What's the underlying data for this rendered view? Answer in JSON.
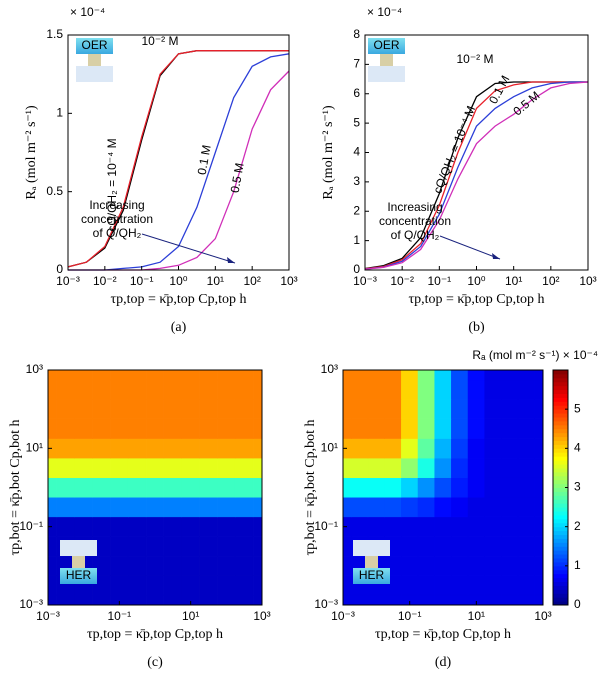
{
  "chart_data": [
    {
      "type": "line",
      "panel_label": "(a)",
      "inset_label": "OER",
      "xlabel": "τp,top = κ̄p,top Cp,top h",
      "ylabel": "Rₐ (mol m⁻² s⁻¹)",
      "y_multiplier": "× 10⁻⁴",
      "xscale": "log",
      "xlim": [
        0.001,
        1000
      ],
      "ylim": [
        0,
        1.5
      ],
      "xticks": [
        {
          "value": 0.001,
          "label": "10⁻³"
        },
        {
          "value": 0.01,
          "label": "10⁻²"
        },
        {
          "value": 0.1,
          "label": "10⁻¹"
        },
        {
          "value": 1,
          "label": "10⁰"
        },
        {
          "value": 10,
          "label": "10¹"
        },
        {
          "value": 100,
          "label": "10²"
        },
        {
          "value": 1000,
          "label": "10³"
        }
      ],
      "yticks": [
        0,
        0.5,
        1,
        1.5
      ],
      "x": [
        0.001,
        0.00316,
        0.01,
        0.0316,
        0.1,
        0.316,
        1,
        3.16,
        10,
        31.6,
        100,
        316,
        1000
      ],
      "series": [
        {
          "name": "10⁻² M",
          "color": "#000000",
          "values": [
            0.02,
            0.05,
            0.14,
            0.38,
            0.83,
            1.24,
            1.38,
            1.4,
            1.4,
            1.4,
            1.4,
            1.4,
            1.4
          ]
        },
        {
          "name": "cQ/QH₂ = 10⁻⁴ M",
          "color": "#e8202a",
          "values": [
            0.02,
            0.05,
            0.15,
            0.4,
            0.85,
            1.25,
            1.38,
            1.4,
            1.4,
            1.4,
            1.4,
            1.4,
            1.4
          ]
        },
        {
          "name": "0.1 M",
          "color": "#2c3fd8",
          "values": [
            0,
            0,
            0,
            0.01,
            0.02,
            0.05,
            0.15,
            0.4,
            0.75,
            1.1,
            1.3,
            1.36,
            1.38
          ]
        },
        {
          "name": "0.5 M",
          "color": "#d02fb8",
          "values": [
            0,
            0,
            0,
            0,
            0,
            0.01,
            0.03,
            0.08,
            0.2,
            0.5,
            0.9,
            1.15,
            1.27
          ]
        }
      ],
      "annotations": [
        "Increasing",
        "concentration",
        "of Q/QH₂"
      ]
    },
    {
      "type": "line",
      "panel_label": "(b)",
      "inset_label": "OER",
      "xlabel": "τp,top = κ̄p,top Cp,top h",
      "ylabel": "Rₐ (mol m⁻² s⁻¹)",
      "y_multiplier": "× 10⁻⁴",
      "xscale": "log",
      "xlim": [
        0.001,
        1000
      ],
      "ylim": [
        0,
        8
      ],
      "xticks": [
        {
          "value": 0.001,
          "label": "10⁻³"
        },
        {
          "value": 0.01,
          "label": "10⁻²"
        },
        {
          "value": 0.1,
          "label": "10⁻¹"
        },
        {
          "value": 1,
          "label": "10⁰"
        },
        {
          "value": 10,
          "label": "10¹"
        },
        {
          "value": 100,
          "label": "10²"
        },
        {
          "value": 1000,
          "label": "10³"
        }
      ],
      "yticks": [
        0,
        1,
        2,
        3,
        4,
        5,
        6,
        7,
        8
      ],
      "x": [
        0.001,
        0.00316,
        0.01,
        0.0316,
        0.1,
        0.316,
        1,
        3.16,
        10,
        31.6,
        100,
        316,
        1000
      ],
      "series": [
        {
          "name": "10⁻² M",
          "color": "#000000",
          "values": [
            0.05,
            0.15,
            0.4,
            1.1,
            2.6,
            4.5,
            5.9,
            6.35,
            6.4,
            6.4,
            6.4,
            6.4,
            6.4
          ]
        },
        {
          "name": "cQ/QH₂ = 10⁻⁴ M",
          "color": "#e8202a",
          "values": [
            0.04,
            0.12,
            0.35,
            0.9,
            2.2,
            4.0,
            5.5,
            6.1,
            6.3,
            6.4,
            6.4,
            6.4,
            6.4
          ]
        },
        {
          "name": "0.1 M",
          "color": "#2c3fd8",
          "values": [
            0.03,
            0.1,
            0.3,
            0.8,
            1.9,
            3.5,
            4.9,
            5.5,
            5.9,
            6.2,
            6.35,
            6.4,
            6.4
          ]
        },
        {
          "name": "0.5 M",
          "color": "#d02fb8",
          "values": [
            0.03,
            0.09,
            0.25,
            0.7,
            1.7,
            3.1,
            4.3,
            4.9,
            5.3,
            5.8,
            6.2,
            6.35,
            6.4
          ]
        }
      ],
      "annotations": [
        "Increasing",
        "concentration",
        "of Q/QH₂"
      ]
    },
    {
      "type": "heatmap",
      "panel_label": "(c)",
      "inset_label": "HER",
      "xlabel": "τp,top = κ̄p,top Cp,top h",
      "ylabel": "τp,bot = κ̄p,bot Cp,bot h",
      "xscale": "log",
      "yscale": "log",
      "xlim": [
        0.001,
        1000
      ],
      "ylim": [
        0.001,
        1000
      ],
      "zlim": [
        0,
        6
      ],
      "xticks": [
        {
          "value": 0.001,
          "label": "10⁻³"
        },
        {
          "value": 0.1,
          "label": "10⁻¹"
        },
        {
          "value": 10,
          "label": "10¹"
        },
        {
          "value": 1000,
          "label": "10³"
        }
      ],
      "yticks": [
        {
          "value": 0.001,
          "label": "10⁻³"
        },
        {
          "value": 0.1,
          "label": "10⁻¹"
        },
        {
          "value": 10,
          "label": "10¹"
        },
        {
          "value": 1000,
          "label": "10³"
        }
      ],
      "x": [
        0.001,
        0.00316,
        0.01,
        0.0316,
        0.1,
        0.316,
        1,
        3.16,
        10,
        31.6,
        100,
        316,
        1000
      ],
      "y": [
        0.001,
        0.00316,
        0.01,
        0.0316,
        0.1,
        0.316,
        1,
        3.16,
        10,
        31.6,
        100,
        316,
        1000
      ],
      "z": [
        [
          0.4,
          0.4,
          0.4,
          0.4,
          0.4,
          0.4,
          0.4,
          0.4,
          0.4,
          0.4,
          0.4,
          0.4,
          0.4
        ],
        [
          0.4,
          0.4,
          0.4,
          0.4,
          0.4,
          0.4,
          0.4,
          0.4,
          0.4,
          0.4,
          0.4,
          0.4,
          0.4
        ],
        [
          0.4,
          0.4,
          0.4,
          0.4,
          0.4,
          0.4,
          0.4,
          0.4,
          0.4,
          0.4,
          0.4,
          0.4,
          0.4
        ],
        [
          0.4,
          0.4,
          0.4,
          0.4,
          0.4,
          0.4,
          0.4,
          0.4,
          0.4,
          0.4,
          0.4,
          0.4,
          0.4
        ],
        [
          0.4,
          0.4,
          0.4,
          0.4,
          0.4,
          0.4,
          0.4,
          0.4,
          0.4,
          0.4,
          0.4,
          0.4,
          0.4
        ],
        [
          1.5,
          1.5,
          1.5,
          1.5,
          1.5,
          1.5,
          1.5,
          1.5,
          1.5,
          1.5,
          1.5,
          1.5,
          1.5
        ],
        [
          2.6,
          2.6,
          2.6,
          2.6,
          2.6,
          2.6,
          2.6,
          2.6,
          2.6,
          2.6,
          2.6,
          2.6,
          2.6
        ],
        [
          3.6,
          3.6,
          3.6,
          3.6,
          3.6,
          3.6,
          3.6,
          3.6,
          3.6,
          3.6,
          3.6,
          3.6,
          3.6
        ],
        [
          4.3,
          4.3,
          4.3,
          4.3,
          4.3,
          4.3,
          4.3,
          4.3,
          4.3,
          4.3,
          4.3,
          4.3,
          4.3
        ],
        [
          4.5,
          4.5,
          4.5,
          4.5,
          4.5,
          4.5,
          4.5,
          4.5,
          4.5,
          4.5,
          4.5,
          4.5,
          4.5
        ],
        [
          4.5,
          4.5,
          4.5,
          4.5,
          4.5,
          4.5,
          4.5,
          4.5,
          4.5,
          4.5,
          4.5,
          4.5,
          4.5
        ],
        [
          4.5,
          4.5,
          4.5,
          4.5,
          4.5,
          4.5,
          4.5,
          4.5,
          4.5,
          4.5,
          4.5,
          4.5,
          4.5
        ],
        [
          4.5,
          4.5,
          4.5,
          4.5,
          4.5,
          4.5,
          4.5,
          4.5,
          4.5,
          4.5,
          4.5,
          4.5,
          4.5
        ]
      ]
    },
    {
      "type": "heatmap",
      "panel_label": "(d)",
      "inset_label": "HER",
      "xlabel": "τp,top = κ̄p,top Cp,top h",
      "ylabel": "τp,bot = κ̄p,bot Cp,bot h",
      "xscale": "log",
      "yscale": "log",
      "xlim": [
        0.001,
        1000
      ],
      "ylim": [
        0.001,
        1000
      ],
      "zlim": [
        0,
        6
      ],
      "colorbar_label": "Rₐ (mol m⁻² s⁻¹) × 10⁻⁴",
      "colorbar_ticks": [
        0,
        1,
        2,
        3,
        4,
        5
      ],
      "xticks": [
        {
          "value": 0.001,
          "label": "10⁻³"
        },
        {
          "value": 0.1,
          "label": "10⁻¹"
        },
        {
          "value": 10,
          "label": "10¹"
        },
        {
          "value": 1000,
          "label": "10³"
        }
      ],
      "yticks": [
        {
          "value": 0.001,
          "label": "10⁻³"
        },
        {
          "value": 0.1,
          "label": "10⁻¹"
        },
        {
          "value": 10,
          "label": "10¹"
        },
        {
          "value": 1000,
          "label": "10³"
        }
      ],
      "x": [
        0.001,
        0.00316,
        0.01,
        0.0316,
        0.1,
        0.316,
        1,
        3.16,
        10,
        31.6,
        100,
        316,
        1000
      ],
      "y": [
        0.001,
        0.00316,
        0.01,
        0.0316,
        0.1,
        0.316,
        1,
        3.16,
        10,
        31.6,
        100,
        316,
        1000
      ],
      "z": [
        [
          0.6,
          0.6,
          0.6,
          0.6,
          0.6,
          0.6,
          0.6,
          0.6,
          0.6,
          0.6,
          0.6,
          0.6,
          0.6
        ],
        [
          0.6,
          0.6,
          0.6,
          0.6,
          0.6,
          0.6,
          0.6,
          0.6,
          0.6,
          0.6,
          0.6,
          0.6,
          0.6
        ],
        [
          0.6,
          0.6,
          0.6,
          0.6,
          0.6,
          0.6,
          0.6,
          0.6,
          0.6,
          0.6,
          0.6,
          0.6,
          0.6
        ],
        [
          0.6,
          0.6,
          0.6,
          0.6,
          0.6,
          0.6,
          0.6,
          0.6,
          0.6,
          0.6,
          0.6,
          0.6,
          0.6
        ],
        [
          0.6,
          0.6,
          0.6,
          0.6,
          0.6,
          0.6,
          0.6,
          0.6,
          0.6,
          0.6,
          0.6,
          0.6,
          0.6
        ],
        [
          1.2,
          1.2,
          1.2,
          1.2,
          1.1,
          1.0,
          0.8,
          0.7,
          0.6,
          0.6,
          0.6,
          0.6,
          0.6
        ],
        [
          2.3,
          2.3,
          2.3,
          2.3,
          2.0,
          1.6,
          1.2,
          0.9,
          0.7,
          0.6,
          0.6,
          0.6,
          0.6
        ],
        [
          3.5,
          3.5,
          3.5,
          3.5,
          3.1,
          2.4,
          1.6,
          1.0,
          0.7,
          0.6,
          0.6,
          0.6,
          0.6
        ],
        [
          4.2,
          4.2,
          4.2,
          4.2,
          3.6,
          2.8,
          1.8,
          1.1,
          0.7,
          0.6,
          0.6,
          0.6,
          0.6
        ],
        [
          4.5,
          4.5,
          4.5,
          4.5,
          4.0,
          3.0,
          2.0,
          1.2,
          0.8,
          0.6,
          0.6,
          0.6,
          0.6
        ],
        [
          4.5,
          4.5,
          4.5,
          4.5,
          4.0,
          3.0,
          2.0,
          1.2,
          0.8,
          0.6,
          0.6,
          0.6,
          0.6
        ],
        [
          4.5,
          4.5,
          4.5,
          4.5,
          4.0,
          3.0,
          2.0,
          1.2,
          0.8,
          0.6,
          0.6,
          0.6,
          0.6
        ],
        [
          4.5,
          4.5,
          4.5,
          4.5,
          4.0,
          3.0,
          2.0,
          1.2,
          0.8,
          0.6,
          0.6,
          0.6,
          0.6
        ]
      ]
    }
  ]
}
